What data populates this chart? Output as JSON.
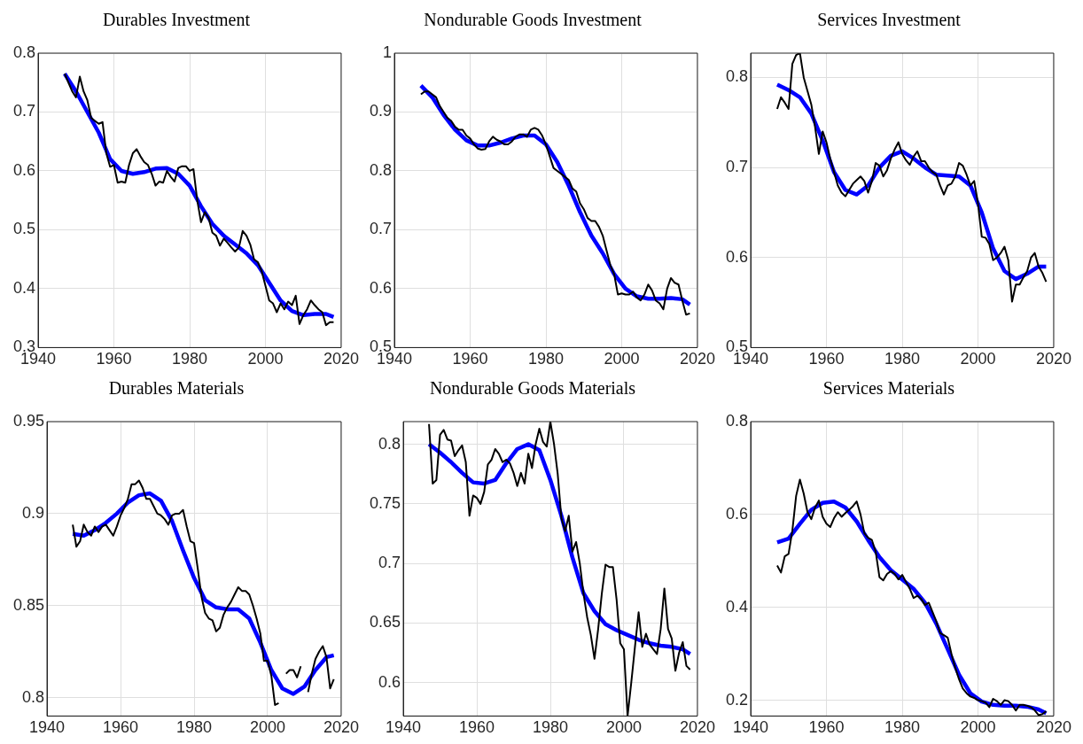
{
  "chart_data": [
    {
      "type": "line",
      "title": "Durables Investment",
      "xlim": [
        1940,
        2020
      ],
      "xticks": [
        1940,
        1960,
        1980,
        2000,
        2020
      ],
      "ylim": [
        0.3,
        0.8
      ],
      "yticks": [
        0.3,
        0.4,
        0.5,
        0.6,
        0.7,
        0.8
      ],
      "grid": true,
      "series": [
        {
          "color": "#000000",
          "x": [
            1947,
            1948,
            1949,
            1950,
            1951,
            1952,
            1953,
            1954,
            1955,
            1956,
            1957,
            1958,
            1959,
            1960,
            1961,
            1962,
            1963,
            1964,
            1965,
            1966,
            1967,
            1968,
            1969,
            1970,
            1971,
            1972,
            1973,
            1974,
            1975,
            1976,
            1977,
            1978,
            1979,
            1980,
            1981,
            1982,
            1983,
            1984,
            1985,
            1986,
            1987,
            1988,
            1989,
            1990,
            1991,
            1992,
            1993,
            1994,
            1995,
            1996,
            1997,
            1998,
            1999,
            2000,
            2001,
            2002,
            2003,
            2004,
            2005,
            2006,
            2007,
            2008,
            2009,
            2010,
            2011,
            2012,
            2013,
            2014,
            2015,
            2016,
            2017,
            2018
          ],
          "values": [
            0.765,
            0.75,
            0.735,
            0.725,
            0.76,
            0.735,
            0.72,
            0.69,
            0.685,
            0.68,
            0.683,
            0.63,
            0.607,
            0.61,
            0.58,
            0.582,
            0.58,
            0.61,
            0.63,
            0.637,
            0.625,
            0.615,
            0.61,
            0.595,
            0.575,
            0.582,
            0.58,
            0.6,
            0.59,
            0.582,
            0.605,
            0.608,
            0.608,
            0.6,
            0.603,
            0.55,
            0.513,
            0.53,
            0.52,
            0.495,
            0.49,
            0.473,
            0.485,
            0.478,
            0.47,
            0.463,
            0.47,
            0.498,
            0.49,
            0.475,
            0.45,
            0.445,
            0.43,
            0.405,
            0.38,
            0.375,
            0.36,
            0.375,
            0.365,
            0.378,
            0.372,
            0.388,
            0.34,
            0.355,
            0.365,
            0.38,
            0.372,
            0.365,
            0.36,
            0.338,
            0.343,
            0.343
          ]
        },
        {
          "color": "#0000ff",
          "x": [
            1947,
            1950,
            1953,
            1956,
            1959,
            1962,
            1965,
            1968,
            1971,
            1974,
            1977,
            1980,
            1983,
            1986,
            1989,
            1992,
            1995,
            1998,
            2001,
            2004,
            2007,
            2010,
            2013,
            2016,
            2018
          ],
          "values": [
            0.765,
            0.735,
            0.7,
            0.665,
            0.62,
            0.6,
            0.595,
            0.598,
            0.604,
            0.605,
            0.595,
            0.575,
            0.54,
            0.51,
            0.49,
            0.475,
            0.46,
            0.44,
            0.41,
            0.38,
            0.362,
            0.355,
            0.357,
            0.357,
            0.352
          ]
        }
      ]
    },
    {
      "type": "line",
      "title": "Nondurable Goods Investment",
      "xlim": [
        1940,
        2020
      ],
      "xticks": [
        1940,
        1960,
        1980,
        2000,
        2020
      ],
      "ylim": [
        0.5,
        1
      ],
      "yticks": [
        0.5,
        0.6,
        0.7,
        0.8,
        0.9,
        1
      ],
      "grid": true,
      "series": [
        {
          "color": "#000000",
          "x": [
            1947,
            1948,
            1949,
            1950,
            1951,
            1952,
            1953,
            1954,
            1955,
            1956,
            1957,
            1958,
            1959,
            1960,
            1961,
            1962,
            1963,
            1964,
            1965,
            1966,
            1967,
            1968,
            1969,
            1970,
            1971,
            1972,
            1973,
            1974,
            1975,
            1976,
            1977,
            1978,
            1979,
            1980,
            1981,
            1982,
            1983,
            1984,
            1985,
            1986,
            1987,
            1988,
            1989,
            1990,
            1991,
            1992,
            1993,
            1994,
            1995,
            1996,
            1997,
            1998,
            1999,
            2000,
            2001,
            2002,
            2003,
            2004,
            2005,
            2006,
            2007,
            2008,
            2009,
            2010,
            2011,
            2012,
            2013,
            2014,
            2015,
            2016,
            2017,
            2018
          ],
          "values": [
            0.93,
            0.935,
            0.935,
            0.93,
            0.925,
            0.91,
            0.9,
            0.89,
            0.885,
            0.875,
            0.87,
            0.87,
            0.86,
            0.855,
            0.845,
            0.838,
            0.836,
            0.837,
            0.85,
            0.858,
            0.853,
            0.85,
            0.845,
            0.845,
            0.85,
            0.858,
            0.862,
            0.862,
            0.858,
            0.87,
            0.873,
            0.87,
            0.86,
            0.845,
            0.825,
            0.805,
            0.8,
            0.795,
            0.79,
            0.785,
            0.77,
            0.765,
            0.745,
            0.735,
            0.72,
            0.715,
            0.715,
            0.705,
            0.69,
            0.665,
            0.64,
            0.625,
            0.59,
            0.592,
            0.59,
            0.59,
            0.595,
            0.585,
            0.58,
            0.59,
            0.607,
            0.597,
            0.58,
            0.575,
            0.565,
            0.6,
            0.618,
            0.61,
            0.607,
            0.58,
            0.556,
            0.558
          ]
        },
        {
          "color": "#0000ff",
          "x": [
            1947,
            1950,
            1953,
            1956,
            1959,
            1962,
            1965,
            1968,
            1971,
            1974,
            1977,
            1980,
            1983,
            1986,
            1989,
            1992,
            1995,
            1998,
            2001,
            2004,
            2007,
            2010,
            2013,
            2016,
            2018
          ],
          "values": [
            0.945,
            0.925,
            0.895,
            0.87,
            0.852,
            0.843,
            0.843,
            0.848,
            0.855,
            0.86,
            0.86,
            0.845,
            0.815,
            0.775,
            0.73,
            0.69,
            0.66,
            0.625,
            0.6,
            0.587,
            0.583,
            0.583,
            0.584,
            0.582,
            0.573
          ]
        }
      ]
    },
    {
      "type": "line",
      "title": "Services Investment",
      "xlim": [
        1940,
        2020
      ],
      "xticks": [
        1940,
        1960,
        1980,
        2000,
        2020
      ],
      "ylim": [
        0.5,
        0.827
      ],
      "yticks": [
        0.5,
        0.6,
        0.7,
        0.8
      ],
      "grid": true,
      "series": [
        {
          "color": "#000000",
          "x": [
            1947,
            1948,
            1949,
            1950,
            1951,
            1952,
            1953,
            1954,
            1955,
            1956,
            1957,
            1958,
            1959,
            1960,
            1961,
            1962,
            1963,
            1964,
            1965,
            1966,
            1967,
            1968,
            1969,
            1970,
            1971,
            1972,
            1973,
            1974,
            1975,
            1976,
            1977,
            1978,
            1979,
            1980,
            1981,
            1982,
            1983,
            1984,
            1985,
            1986,
            1987,
            1988,
            1989,
            1990,
            1991,
            1992,
            1993,
            1994,
            1995,
            1996,
            1997,
            1998,
            1999,
            2000,
            2001,
            2002,
            2003,
            2004,
            2005,
            2006,
            2007,
            2008,
            2009,
            2010,
            2011,
            2012,
            2013,
            2014,
            2015,
            2016,
            2017,
            2018
          ],
          "values": [
            0.765,
            0.778,
            0.772,
            0.765,
            0.815,
            0.825,
            0.827,
            0.8,
            0.785,
            0.77,
            0.745,
            0.715,
            0.74,
            0.728,
            0.71,
            0.695,
            0.68,
            0.672,
            0.668,
            0.675,
            0.682,
            0.686,
            0.69,
            0.685,
            0.672,
            0.685,
            0.705,
            0.702,
            0.69,
            0.697,
            0.71,
            0.72,
            0.728,
            0.715,
            0.708,
            0.703,
            0.712,
            0.718,
            0.707,
            0.707,
            0.7,
            0.695,
            0.692,
            0.68,
            0.67,
            0.68,
            0.682,
            0.69,
            0.705,
            0.702,
            0.692,
            0.68,
            0.685,
            0.66,
            0.623,
            0.622,
            0.615,
            0.597,
            0.6,
            0.605,
            0.612,
            0.597,
            0.551,
            0.57,
            0.57,
            0.578,
            0.585,
            0.6,
            0.605,
            0.59,
            0.583,
            0.573
          ]
        },
        {
          "color": "#0000ff",
          "x": [
            1947,
            1950,
            1953,
            1956,
            1959,
            1962,
            1965,
            1968,
            1971,
            1974,
            1977,
            1980,
            1983,
            1986,
            1989,
            1992,
            1995,
            1998,
            2001,
            2004,
            2007,
            2010,
            2013,
            2016,
            2018
          ],
          "values": [
            0.792,
            0.786,
            0.778,
            0.76,
            0.73,
            0.695,
            0.675,
            0.67,
            0.68,
            0.7,
            0.713,
            0.718,
            0.71,
            0.7,
            0.692,
            0.691,
            0.69,
            0.68,
            0.65,
            0.61,
            0.585,
            0.576,
            0.582,
            0.59,
            0.59
          ]
        }
      ]
    },
    {
      "type": "line",
      "title": "Durables Materials",
      "xlim": [
        1940,
        2020
      ],
      "xticks": [
        1940,
        1960,
        1980,
        2000,
        2020
      ],
      "ylim": [
        0.79,
        0.95
      ],
      "yticks": [
        0.8,
        0.85,
        0.9,
        0.95
      ],
      "grid": true,
      "series": [
        {
          "color": "#000000",
          "x": [
            1947,
            1948,
            1949,
            1950,
            1951,
            1952,
            1953,
            1954,
            1955,
            1956,
            1957,
            1958,
            1959,
            1960,
            1961,
            1962,
            1963,
            1964,
            1965,
            1966,
            1967,
            1968,
            1969,
            1970,
            1971,
            1972,
            1973,
            1974,
            1975,
            1976,
            1977,
            1978,
            1979,
            1980,
            1981,
            1982,
            1983,
            1984,
            1985,
            1986,
            1987,
            1988,
            1989,
            1990,
            1991,
            1992,
            1993,
            1994,
            1995,
            1996,
            1997,
            1998,
            1999,
            2000,
            2001,
            2002,
            2003,
            2004,
            2005,
            2006,
            2007,
            2008,
            2009,
            2010,
            2011,
            2012,
            2013,
            2014,
            2015,
            2016,
            2017,
            2018
          ],
          "values": [
            0.894,
            0.882,
            0.885,
            0.894,
            0.89,
            0.888,
            0.893,
            0.89,
            0.893,
            0.894,
            0.891,
            0.888,
            0.893,
            0.899,
            0.903,
            0.908,
            0.916,
            0.916,
            0.918,
            0.914,
            0.908,
            0.908,
            0.904,
            0.9,
            0.899,
            0.897,
            0.894,
            0.899,
            0.9,
            0.9,
            0.902,
            0.893,
            0.885,
            0.884,
            0.87,
            0.855,
            0.846,
            0.843,
            0.842,
            0.836,
            0.838,
            0.845,
            0.849,
            0.852,
            0.856,
            0.86,
            0.858,
            0.858,
            0.856,
            0.85,
            0.843,
            0.835,
            0.82,
            0.82,
            0.812,
            0.796,
            0.797,
            null,
            0.813,
            0.815,
            0.815,
            0.811,
            0.817,
            null,
            0.803,
            0.813,
            0.821,
            0.825,
            0.828,
            0.822,
            0.805,
            0.81
          ]
        },
        {
          "color": "#0000ff",
          "x": [
            1947,
            1950,
            1953,
            1956,
            1959,
            1962,
            1965,
            1968,
            1971,
            1974,
            1977,
            1980,
            1983,
            1986,
            1989,
            1992,
            1995,
            1998,
            2001,
            2004,
            2007,
            2010,
            2013,
            2016,
            2018
          ],
          "values": [
            0.889,
            0.888,
            0.891,
            0.895,
            0.9,
            0.906,
            0.91,
            0.911,
            0.907,
            0.896,
            0.88,
            0.865,
            0.853,
            0.849,
            0.848,
            0.848,
            0.843,
            0.83,
            0.815,
            0.805,
            0.802,
            0.806,
            0.815,
            0.822,
            0.823
          ]
        }
      ]
    },
    {
      "type": "line",
      "title": "Nondurable Goods Materials",
      "xlim": [
        1940,
        2020
      ],
      "xticks": [
        1940,
        1960,
        1980,
        2000,
        2020
      ],
      "ylim": [
        0.572,
        0.819
      ],
      "yticks": [
        0.6,
        0.65,
        0.7,
        0.75,
        0.8
      ],
      "grid": true,
      "series": [
        {
          "color": "#000000",
          "x": [
            1947,
            1948,
            1949,
            1950,
            1951,
            1952,
            1953,
            1954,
            1955,
            1956,
            1957,
            1958,
            1959,
            1960,
            1961,
            1962,
            1963,
            1964,
            1965,
            1966,
            1967,
            1968,
            1969,
            1970,
            1971,
            1972,
            1973,
            1974,
            1975,
            1976,
            1977,
            1978,
            1979,
            1980,
            1981,
            1982,
            1983,
            1984,
            1985,
            1986,
            1987,
            1988,
            1989,
            1990,
            1991,
            1992,
            1993,
            1994,
            1995,
            1996,
            1997,
            1998,
            1999,
            2000,
            2001,
            2002,
            2003,
            2004,
            2005,
            2006,
            2007,
            2008,
            2009,
            2010,
            2011,
            2012,
            2013,
            2014,
            2015,
            2016,
            2017,
            2018
          ],
          "values": [
            0.817,
            0.767,
            0.77,
            0.808,
            0.812,
            0.804,
            0.803,
            0.79,
            0.795,
            0.799,
            0.785,
            0.74,
            0.757,
            0.755,
            0.75,
            0.76,
            0.783,
            0.787,
            0.796,
            0.792,
            0.785,
            0.787,
            0.784,
            0.776,
            0.765,
            0.776,
            0.767,
            0.792,
            0.78,
            0.8,
            0.813,
            0.802,
            0.798,
            0.819,
            0.8,
            0.775,
            0.738,
            0.727,
            0.74,
            0.71,
            0.718,
            0.7,
            0.675,
            0.655,
            0.64,
            0.62,
            0.645,
            0.675,
            0.699,
            0.697,
            0.697,
            0.67,
            0.633,
            0.628,
            0.572,
            0.6,
            0.63,
            0.659,
            0.63,
            0.641,
            0.632,
            0.628,
            0.624,
            0.645,
            0.679,
            0.645,
            0.637,
            0.61,
            0.625,
            0.634,
            0.614,
            0.611
          ]
        },
        {
          "color": "#0000ff",
          "x": [
            1947,
            1950,
            1953,
            1956,
            1959,
            1962,
            1965,
            1968,
            1971,
            1974,
            1977,
            1980,
            1983,
            1986,
            1989,
            1992,
            1995,
            1998,
            2001,
            2004,
            2007,
            2010,
            2013,
            2016,
            2018
          ],
          "values": [
            0.8,
            0.793,
            0.785,
            0.776,
            0.768,
            0.767,
            0.77,
            0.784,
            0.796,
            0.8,
            0.795,
            0.77,
            0.74,
            0.705,
            0.675,
            0.66,
            0.649,
            0.644,
            0.64,
            0.636,
            0.633,
            0.631,
            0.63,
            0.628,
            0.624
          ]
        }
      ]
    },
    {
      "type": "line",
      "title": "Services Materials",
      "xlim": [
        1940,
        2020
      ],
      "xticks": [
        1940,
        1960,
        1980,
        2000,
        2020
      ],
      "ylim": [
        0.166,
        0.8
      ],
      "yticks": [
        0.2,
        0.4,
        0.6,
        0.8
      ],
      "grid": true,
      "series": [
        {
          "color": "#000000",
          "x": [
            1947,
            1948,
            1949,
            1950,
            1951,
            1952,
            1953,
            1954,
            1955,
            1956,
            1957,
            1958,
            1959,
            1960,
            1961,
            1962,
            1963,
            1964,
            1965,
            1966,
            1967,
            1968,
            1969,
            1970,
            1971,
            1972,
            1973,
            1974,
            1975,
            1976,
            1977,
            1978,
            1979,
            1980,
            1981,
            1982,
            1983,
            1984,
            1985,
            1986,
            1987,
            1988,
            1989,
            1990,
            1991,
            1992,
            1993,
            1994,
            1995,
            1996,
            1997,
            1998,
            1999,
            2000,
            2001,
            2002,
            2003,
            2004,
            2005,
            2006,
            2007,
            2008,
            2009,
            2010,
            2011,
            2012,
            2013,
            2014,
            2015,
            2016,
            2017,
            2018
          ],
          "values": [
            0.49,
            0.475,
            0.51,
            0.515,
            0.565,
            0.64,
            0.675,
            0.645,
            0.605,
            0.59,
            0.615,
            0.63,
            0.595,
            0.58,
            0.573,
            0.592,
            0.605,
            0.595,
            0.603,
            0.61,
            0.618,
            0.628,
            0.6,
            0.56,
            0.55,
            0.545,
            0.52,
            0.465,
            0.458,
            0.472,
            0.478,
            0.472,
            0.46,
            0.47,
            0.455,
            0.44,
            0.42,
            0.425,
            0.418,
            0.405,
            0.41,
            0.39,
            0.37,
            0.345,
            0.34,
            0.335,
            0.3,
            0.27,
            0.245,
            0.225,
            0.215,
            0.208,
            0.205,
            0.2,
            0.198,
            0.195,
            0.185,
            0.203,
            0.198,
            0.19,
            0.2,
            0.198,
            0.19,
            0.178,
            0.19,
            0.19,
            0.188,
            0.185,
            0.178,
            0.168,
            0.17,
            0.176
          ]
        },
        {
          "color": "#0000ff",
          "x": [
            1947,
            1950,
            1953,
            1956,
            1959,
            1962,
            1965,
            1968,
            1971,
            1974,
            1977,
            1980,
            1983,
            1986,
            1989,
            1992,
            1995,
            1998,
            2001,
            2004,
            2007,
            2010,
            2013,
            2016,
            2018
          ],
          "values": [
            0.54,
            0.548,
            0.58,
            0.61,
            0.625,
            0.628,
            0.615,
            0.585,
            0.545,
            0.508,
            0.48,
            0.46,
            0.44,
            0.41,
            0.365,
            0.31,
            0.255,
            0.215,
            0.197,
            0.19,
            0.188,
            0.188,
            0.186,
            0.18,
            0.172
          ]
        }
      ]
    }
  ]
}
